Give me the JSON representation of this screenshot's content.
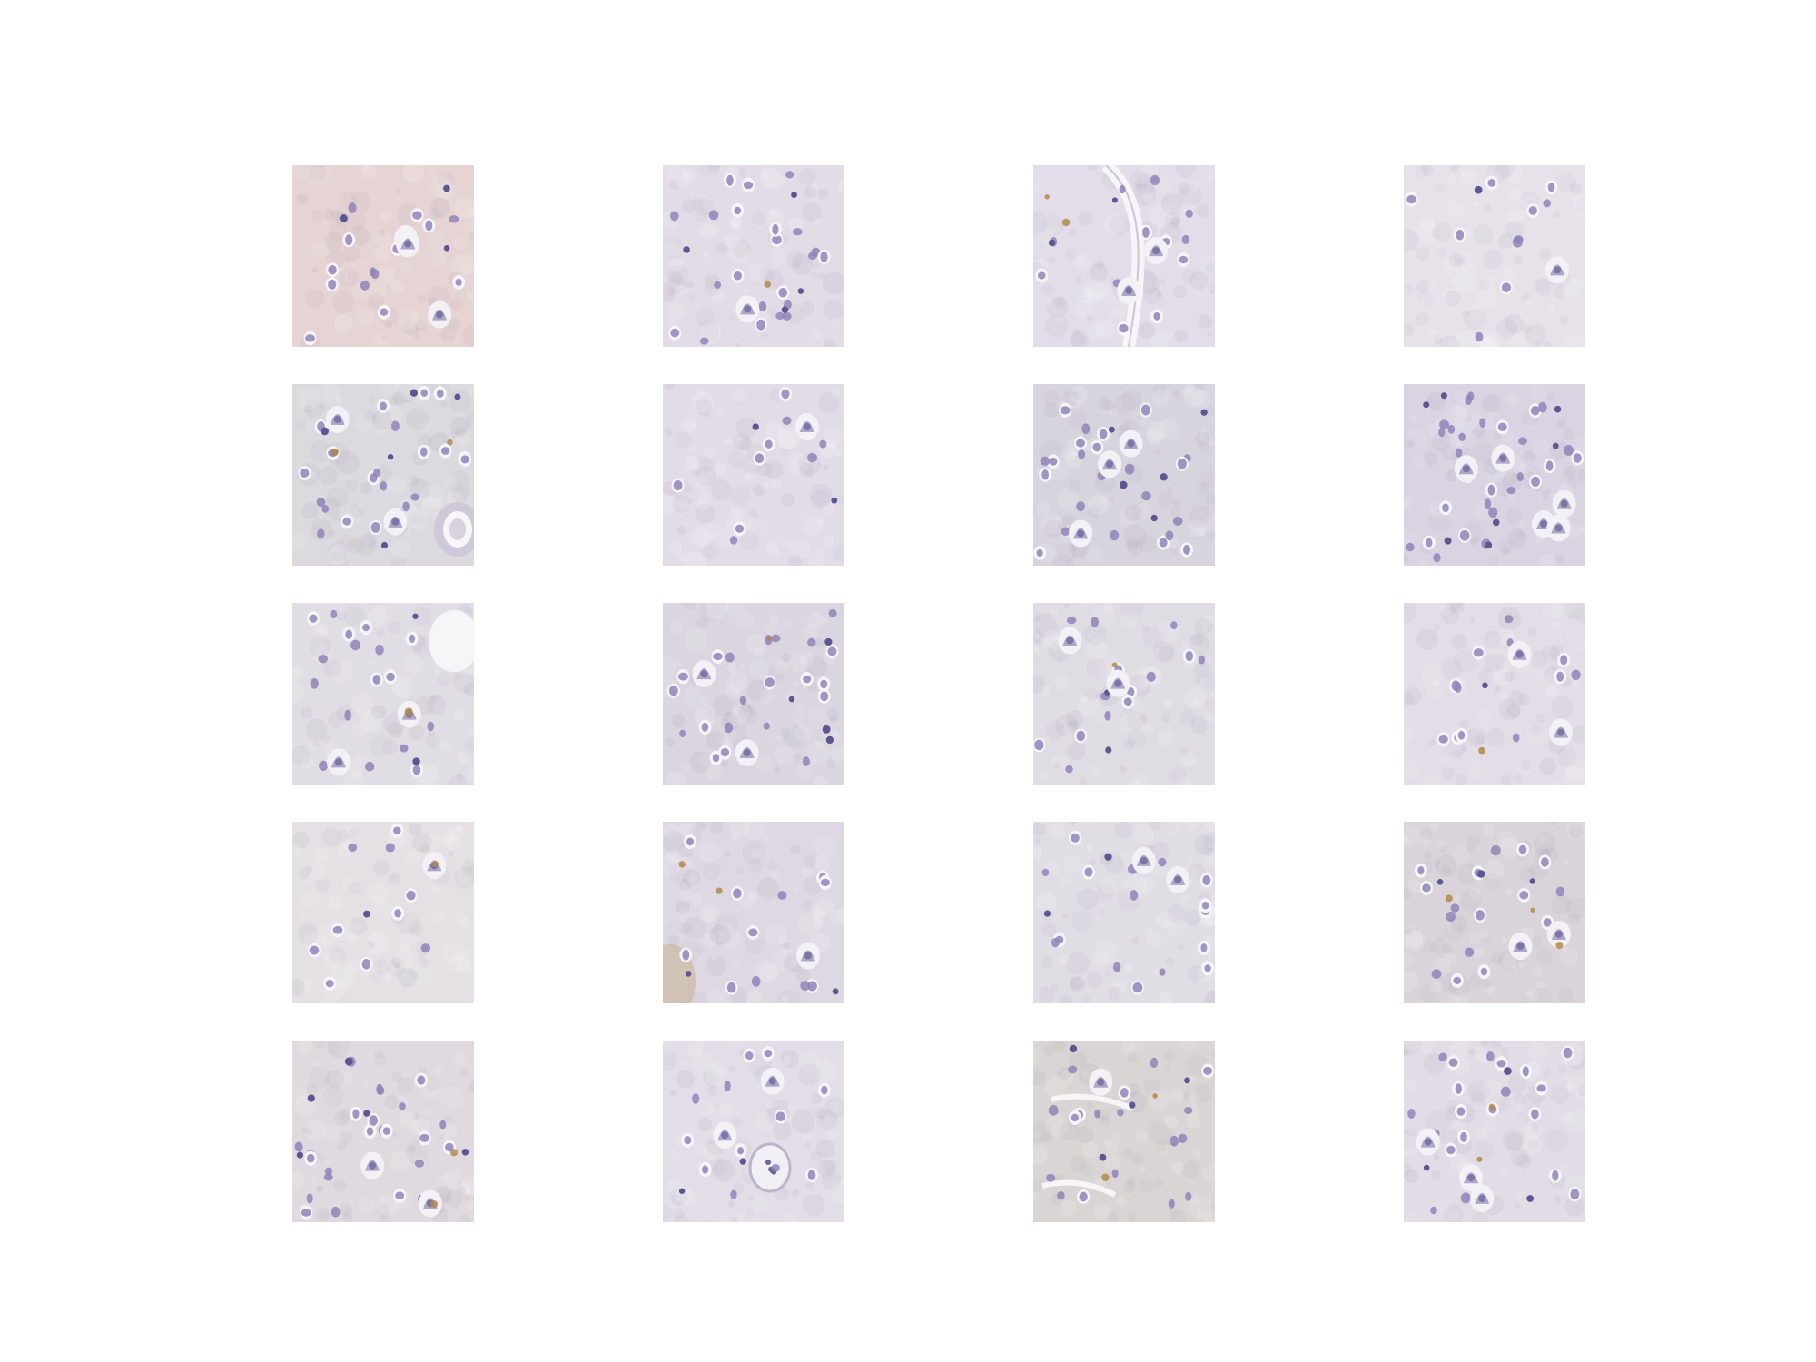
{
  "figure": {
    "grid": {
      "rows": 5,
      "cols": 4
    },
    "tile_kind": "histology-patch",
    "stain_colors": {
      "background_default": "#e2dce6",
      "nucleus": "#8f84b8",
      "nucleus_dark": "#5e5690",
      "pigment": "#b08a4a",
      "vessel_lumen": "#f7f5f8"
    },
    "tiles": [
      {
        "bg": "#e6d3d3",
        "cells": 14,
        "large": 3,
        "dark": 3,
        "pigment": 0,
        "vessel": "none",
        "seed": 11
      },
      {
        "bg": "#e3dce7",
        "cells": 22,
        "large": 1,
        "dark": 4,
        "pigment": 1,
        "vessel": "none",
        "seed": 23
      },
      {
        "bg": "#e2dde8",
        "cells": 12,
        "large": 2,
        "dark": 2,
        "pigment": 2,
        "vessel": "curve",
        "seed": 37
      },
      {
        "bg": "#e7e2ea",
        "cells": 10,
        "large": 1,
        "dark": 1,
        "pigment": 0,
        "vessel": "none",
        "seed": 41
      },
      {
        "bg": "#dcd9df",
        "cells": 26,
        "large": 2,
        "dark": 6,
        "pigment": 2,
        "vessel": "round-br",
        "seed": 53
      },
      {
        "bg": "#e2dce7",
        "cells": 9,
        "large": 1,
        "dark": 2,
        "pigment": 0,
        "vessel": "none",
        "seed": 61
      },
      {
        "bg": "#d8d4de",
        "cells": 24,
        "large": 3,
        "dark": 6,
        "pigment": 0,
        "vessel": "none",
        "seed": 73
      },
      {
        "bg": "#d9d3e2",
        "cells": 28,
        "large": 5,
        "dark": 8,
        "pigment": 0,
        "vessel": "none",
        "seed": 89
      },
      {
        "bg": "#e1dde4",
        "cells": 18,
        "large": 2,
        "dark": 2,
        "pigment": 1,
        "vessel": "hole-tr",
        "seed": 97
      },
      {
        "bg": "#dad5df",
        "cells": 22,
        "large": 2,
        "dark": 4,
        "pigment": 1,
        "vessel": "none",
        "seed": 103
      },
      {
        "bg": "#e0dce4",
        "cells": 14,
        "large": 2,
        "dark": 2,
        "pigment": 1,
        "vessel": "none",
        "seed": 113
      },
      {
        "bg": "#e2dde6",
        "cells": 12,
        "large": 2,
        "dark": 1,
        "pigment": 1,
        "vessel": "none",
        "seed": 127
      },
      {
        "bg": "#e4e0e4",
        "cells": 10,
        "large": 1,
        "dark": 1,
        "pigment": 1,
        "vessel": "none",
        "seed": 131
      },
      {
        "bg": "#ded8e2",
        "cells": 11,
        "large": 1,
        "dark": 2,
        "pigment": 2,
        "vessel": "stain-bl",
        "seed": 149
      },
      {
        "bg": "#e1dde5",
        "cells": 16,
        "large": 2,
        "dark": 2,
        "pigment": 0,
        "vessel": "none",
        "seed": 151
      },
      {
        "bg": "#dad4da",
        "cells": 16,
        "large": 2,
        "dark": 3,
        "pigment": 3,
        "vessel": "none",
        "seed": 167
      },
      {
        "bg": "#e0d9df",
        "cells": 24,
        "large": 2,
        "dark": 6,
        "pigment": 2,
        "vessel": "none",
        "seed": 173
      },
      {
        "bg": "#e2dde6",
        "cells": 12,
        "large": 2,
        "dark": 2,
        "pigment": 0,
        "vessel": "round-mid",
        "seed": 181
      },
      {
        "bg": "#d9d5d4",
        "cells": 18,
        "large": 1,
        "dark": 4,
        "pigment": 2,
        "vessel": "gap-lines",
        "seed": 191
      },
      {
        "bg": "#e1dce5",
        "cells": 20,
        "large": 3,
        "dark": 3,
        "pigment": 2,
        "vessel": "none",
        "seed": 197
      }
    ]
  }
}
